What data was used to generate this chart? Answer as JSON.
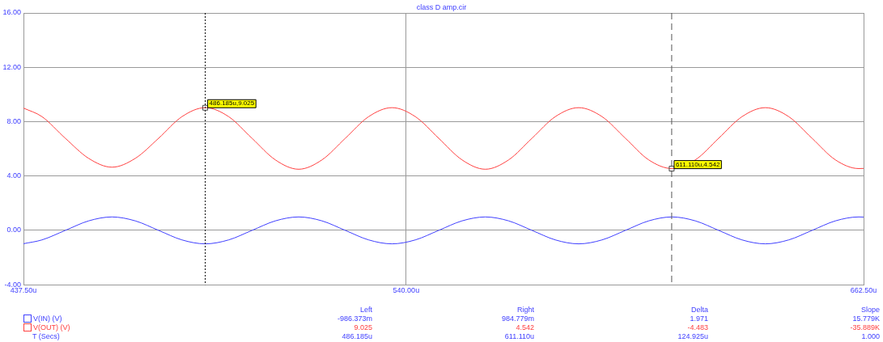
{
  "chart_data": {
    "type": "line",
    "title": "class D amp.cir",
    "x": [
      437.5,
      442.45,
      448.7,
      454.95,
      461.2,
      467.45,
      473.7,
      479.95,
      486.2,
      492.45,
      498.7,
      504.95,
      511.2,
      517.45,
      523.7,
      529.95,
      536.2,
      542.45,
      548.7,
      554.95,
      561.2,
      567.45,
      573.7,
      579.95,
      586.2,
      592.45,
      598.7,
      604.95,
      611.2,
      617.45,
      623.7,
      629.95,
      636.2,
      642.45,
      648.7,
      654.95,
      661.2,
      662.5
    ],
    "series": [
      {
        "name": "V(IN) (V)",
        "color": "#4040ff",
        "values": [
          -0.98,
          -0.7,
          0,
          0.7,
          0.99,
          0.7,
          0,
          -0.7,
          -0.99,
          -0.7,
          0,
          0.7,
          0.99,
          0.7,
          0,
          -0.7,
          -0.99,
          -0.7,
          0,
          0.7,
          0.99,
          0.7,
          0,
          -0.7,
          -0.99,
          -0.7,
          0,
          0.7,
          0.99,
          0.7,
          0,
          -0.7,
          -0.99,
          -0.7,
          0,
          0.7,
          0.99,
          0.98
        ]
      },
      {
        "name": "V(OUT) (V)",
        "color": "#ff4040",
        "values": [
          9.0,
          8.37,
          6.78,
          5.3,
          4.65,
          5.3,
          6.78,
          8.37,
          9.03,
          8.37,
          6.78,
          5.19,
          4.5,
          5.19,
          6.78,
          8.37,
          9.03,
          8.37,
          6.78,
          5.19,
          4.5,
          5.19,
          6.78,
          8.37,
          9.03,
          8.37,
          6.78,
          5.19,
          4.55,
          5.19,
          6.78,
          8.37,
          9.03,
          8.37,
          6.78,
          5.19,
          4.55,
          4.56
        ]
      }
    ],
    "xlim": [
      437.5,
      662.5
    ],
    "xticks": [
      {
        "value": 437.5,
        "label": "437.50u"
      },
      {
        "value": 540,
        "label": "540.00u"
      },
      {
        "value": 662.5,
        "label": "662.50u"
      }
    ],
    "ylim": [
      -4,
      16
    ],
    "yticks": [
      {
        "value": -4,
        "label": "-4.00"
      },
      {
        "value": 0,
        "label": "0.00"
      },
      {
        "value": 4,
        "label": "4.00"
      },
      {
        "value": 8,
        "label": "8.00"
      },
      {
        "value": 12,
        "label": "12.00"
      },
      {
        "value": 16,
        "label": "16.00"
      }
    ],
    "grid": true,
    "marker": "none",
    "line_style": "solid",
    "legend": "bottom left",
    "ref_lines": [
      {
        "axis": "x",
        "value": 486.185,
        "line_style": "dotted",
        "color": "#000000"
      },
      {
        "axis": "x",
        "value": 611.11,
        "line_style": "dashed",
        "color": "#555555"
      }
    ],
    "annotations": [
      {
        "text": "486.185u,9.025",
        "x": 486.185,
        "y": 9.025
      },
      {
        "text": "611.110u,4.542",
        "x": 611.11,
        "y": 4.542
      },
      "Left",
      "Right",
      "Delta",
      "Slope",
      "-986.373m",
      "984.779m",
      "1.971",
      "15.779K",
      "9.025",
      "4.542",
      "-4.483",
      "-35.889K",
      "486.185u",
      "611.110u",
      "124.925u",
      "1.000",
      "T (Secs)"
    ]
  }
}
